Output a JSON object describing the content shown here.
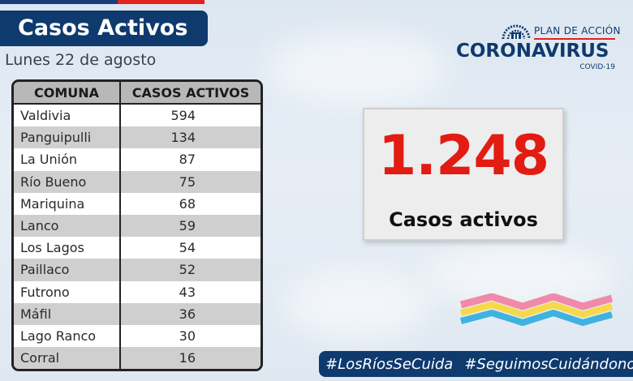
{
  "header": {
    "title": "Casos Activos",
    "date": "Lunes 22 de agosto"
  },
  "logo": {
    "plan": "PLAN DE ACCIÓN",
    "name": "CORONAVIRUS",
    "sub": "COVID-19"
  },
  "table": {
    "headers": [
      "COMUNA",
      "CASOS ACTIVOS"
    ],
    "rows": [
      {
        "comuna": "Valdivia",
        "casos": "594"
      },
      {
        "comuna": "Panguipulli",
        "casos": "134"
      },
      {
        "comuna": "La Unión",
        "casos": "87"
      },
      {
        "comuna": "Río Bueno",
        "casos": "75"
      },
      {
        "comuna": "Mariquina",
        "casos": "68"
      },
      {
        "comuna": "Lanco",
        "casos": "59"
      },
      {
        "comuna": "Los Lagos",
        "casos": "54"
      },
      {
        "comuna": "Paillaco",
        "casos": "52"
      },
      {
        "comuna": "Futrono",
        "casos": "43"
      },
      {
        "comuna": "Máfil",
        "casos": "36"
      },
      {
        "comuna": "Lago Ranco",
        "casos": "30"
      },
      {
        "comuna": "Corral",
        "casos": "16"
      }
    ]
  },
  "counter": {
    "value": "1.248",
    "label": "Casos activos"
  },
  "hashtags": [
    "#LosRíosSeCuida",
    "#SeguimosCuidándonos"
  ],
  "colors": {
    "navy": "#0e3a6e",
    "red": "#e21b13",
    "pink": "#f08aa8",
    "yellow": "#f5d94a",
    "cyan": "#3fb2e0"
  }
}
